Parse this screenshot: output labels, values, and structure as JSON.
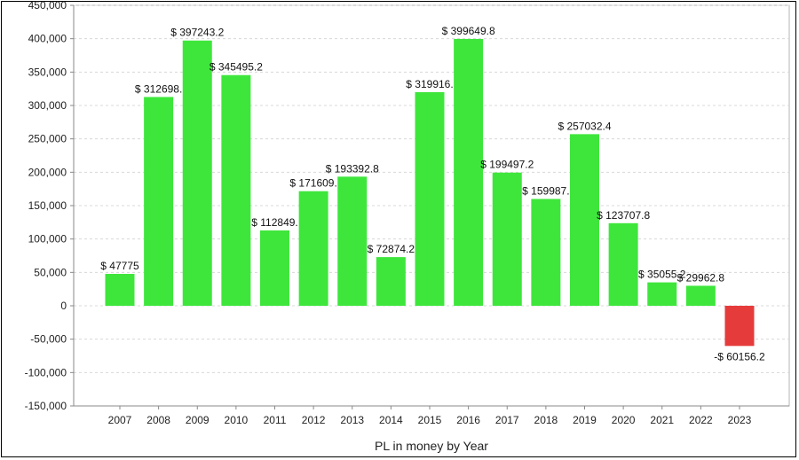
{
  "chart_data": {
    "type": "bar",
    "title": "",
    "xlabel": "PL in money by Year",
    "ylabel": "",
    "ylim": [
      -150000,
      450000
    ],
    "grid": true,
    "legend": "none",
    "positive_color": "#3ee63c",
    "negative_color": "#e63b3b",
    "categories": [
      "2007",
      "2008",
      "2009",
      "2010",
      "2011",
      "2012",
      "2013",
      "2014",
      "2015",
      "2016",
      "2017",
      "2018",
      "2019",
      "2020",
      "2021",
      "2022",
      "2023"
    ],
    "values": [
      47775,
      312698.2,
      397243.2,
      345495.2,
      112849.2,
      171609.2,
      193392.8,
      72874.2,
      319916.2,
      399649.8,
      199497.2,
      159987.2,
      257032.4,
      123707.8,
      35055.2,
      29962.8,
      -60156.2
    ],
    "value_labels": [
      "$ 47775",
      "$ 312698.",
      "$ 397243.2",
      "$ 345495.2",
      "$ 112849.",
      "$ 171609.",
      "$ 193392.8",
      "$ 72874.2",
      "$ 319916.",
      "$ 399649.8",
      "$ 199497.2",
      "$ 159987.",
      "$ 257032.4",
      "$ 123707.8",
      "$ 35055.2",
      "$ 29962.8",
      "-$ 60156.2"
    ],
    "yticks": [
      -150000,
      -100000,
      -50000,
      0,
      50000,
      100000,
      150000,
      200000,
      250000,
      300000,
      350000,
      400000,
      450000
    ],
    "ytick_labels": [
      "-150,000",
      "-100,000",
      "-50,000",
      "0",
      "50,000",
      "100,000",
      "150,000",
      "200,000",
      "250,000",
      "300,000",
      "350,000",
      "400,000",
      "450,000"
    ]
  }
}
